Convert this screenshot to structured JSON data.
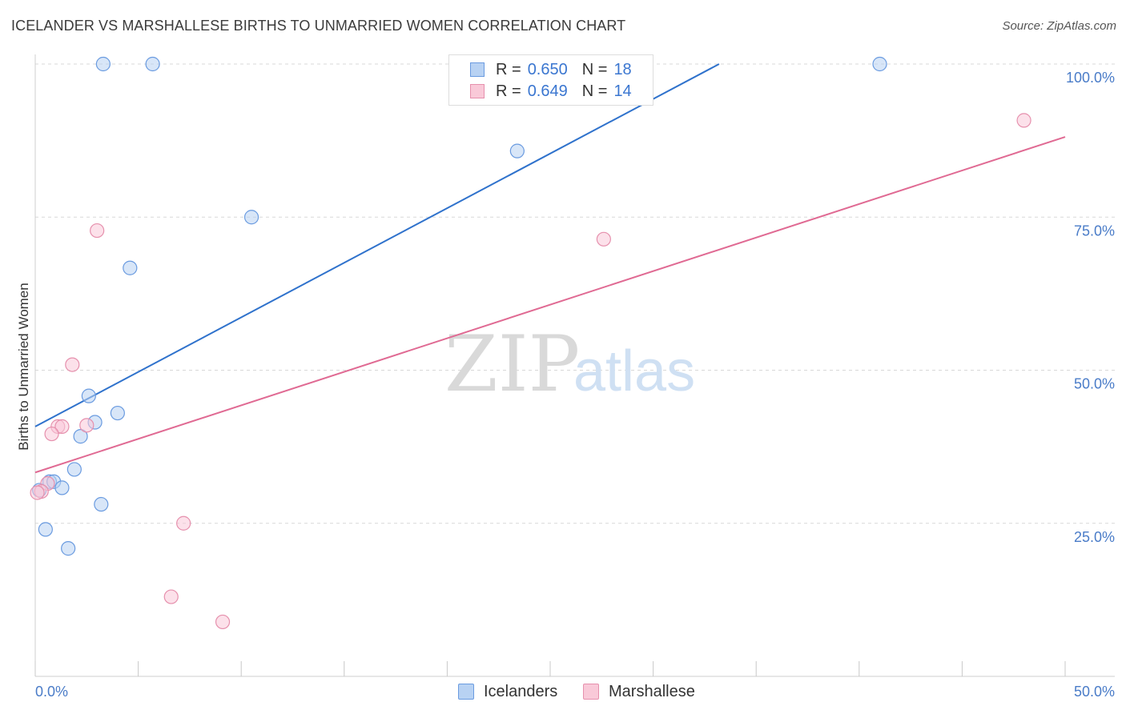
{
  "header": {
    "title": "ICELANDER VS MARSHALLESE BIRTHS TO UNMARRIED WOMEN CORRELATION CHART",
    "source": "Source: ZipAtlas.com"
  },
  "watermark": {
    "zip": "ZIP",
    "atlas": "atlas"
  },
  "legend": {
    "rows": [
      {
        "r_label": "R =",
        "r_value": "0.650",
        "n_label": "N =",
        "n_value": "18"
      },
      {
        "r_label": "R =",
        "r_value": "0.649",
        "n_label": "N =",
        "n_value": "14"
      }
    ]
  },
  "bottom_legend": {
    "series0": "Icelanders",
    "series1": "Marshallese"
  },
  "colors": {
    "icelanders_fill": "#b8d2f3",
    "icelanders_stroke": "#6a9be0",
    "icelanders_line": "#2f72cc",
    "marshallese_fill": "#f9c9d8",
    "marshallese_stroke": "#e690ad",
    "marshallese_line": "#e06a93",
    "grid": "#d8d8d8",
    "tick_text": "#4a7cc8"
  },
  "chart_data": {
    "type": "scatter",
    "title": "ICELANDER VS MARSHALLESE BIRTHS TO UNMARRIED WOMEN CORRELATION CHART",
    "xlabel": "",
    "ylabel": "Births to Unmarried Women",
    "xlim": [
      0,
      50
    ],
    "ylim": [
      0,
      100
    ],
    "x_tick_labels": {
      "left": "0.0%",
      "right": "50.0%"
    },
    "y_ticks": [
      {
        "value": 100,
        "label": "100.0%"
      },
      {
        "value": 75,
        "label": "75.0%"
      },
      {
        "value": 50,
        "label": "50.0%"
      },
      {
        "value": 25,
        "label": "25.0%"
      }
    ],
    "grid": true,
    "legend_position": "top-center",
    "series": [
      {
        "name": "Icelanders",
        "r": 0.65,
        "n": 18,
        "points": [
          [
            3.3,
            100
          ],
          [
            5.7,
            100
          ],
          [
            41.0,
            100
          ],
          [
            23.4,
            85.8
          ],
          [
            10.5,
            75.0
          ],
          [
            4.6,
            66.7
          ],
          [
            2.6,
            45.8
          ],
          [
            4.0,
            43.0
          ],
          [
            2.9,
            41.5
          ],
          [
            2.2,
            39.2
          ],
          [
            1.9,
            33.8
          ],
          [
            0.7,
            31.8
          ],
          [
            0.9,
            31.8
          ],
          [
            1.3,
            30.8
          ],
          [
            0.2,
            30.4
          ],
          [
            3.2,
            28.1
          ],
          [
            0.5,
            24.0
          ],
          [
            1.6,
            20.9
          ]
        ],
        "trend": {
          "x0": 0,
          "y0": 40.8,
          "x1": 33.2,
          "y1": 100
        }
      },
      {
        "name": "Marshallese",
        "r": 0.649,
        "n": 14,
        "points": [
          [
            48.0,
            90.8
          ],
          [
            3.0,
            72.8
          ],
          [
            27.6,
            71.4
          ],
          [
            1.8,
            50.9
          ],
          [
            1.1,
            40.8
          ],
          [
            1.3,
            40.8
          ],
          [
            2.5,
            41.0
          ],
          [
            0.8,
            39.6
          ],
          [
            0.6,
            31.5
          ],
          [
            0.3,
            30.2
          ],
          [
            7.2,
            25.0
          ],
          [
            6.6,
            13.0
          ],
          [
            9.1,
            8.9
          ],
          [
            0.1,
            30.0
          ]
        ],
        "trend": {
          "x0": 0,
          "y0": 33.3,
          "x1": 50,
          "y1": 88.1
        }
      }
    ]
  }
}
